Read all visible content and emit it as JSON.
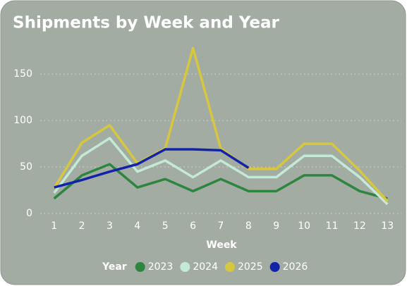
{
  "chart_data": {
    "type": "line",
    "title": "Shipments by Week and Year",
    "x_label": "Week",
    "legend_title": "Year",
    "x": [
      1,
      2,
      3,
      4,
      5,
      6,
      7,
      8,
      9,
      10,
      11,
      12,
      13
    ],
    "xlim": [
      0.5,
      13.5
    ],
    "xticks": [
      1,
      2,
      3,
      4,
      5,
      6,
      7,
      8,
      9,
      10,
      11,
      12,
      13
    ],
    "ylim": [
      0,
      185
    ],
    "yticks": [
      0,
      50,
      100,
      150
    ],
    "grid": true,
    "series": [
      {
        "name": "2023",
        "color": "#2e8540",
        "values": [
          16,
          41,
          53,
          28,
          37,
          24,
          37,
          24,
          24,
          41,
          41,
          24,
          16
        ]
      },
      {
        "name": "2024",
        "color": "#c4e9d6",
        "values": [
          22,
          62,
          81,
          45,
          57,
          39,
          57,
          39,
          39,
          62,
          62,
          39,
          10
        ]
      },
      {
        "name": "2025",
        "color": "#d6c73e",
        "values": [
          27,
          76,
          95,
          54,
          70,
          178,
          70,
          48,
          48,
          75,
          75,
          46,
          13
        ]
      },
      {
        "name": "2026",
        "color": "#1223a8",
        "values": [
          28,
          36,
          45,
          53,
          69,
          69,
          68,
          49,
          null,
          null,
          null,
          null,
          null
        ]
      }
    ]
  }
}
